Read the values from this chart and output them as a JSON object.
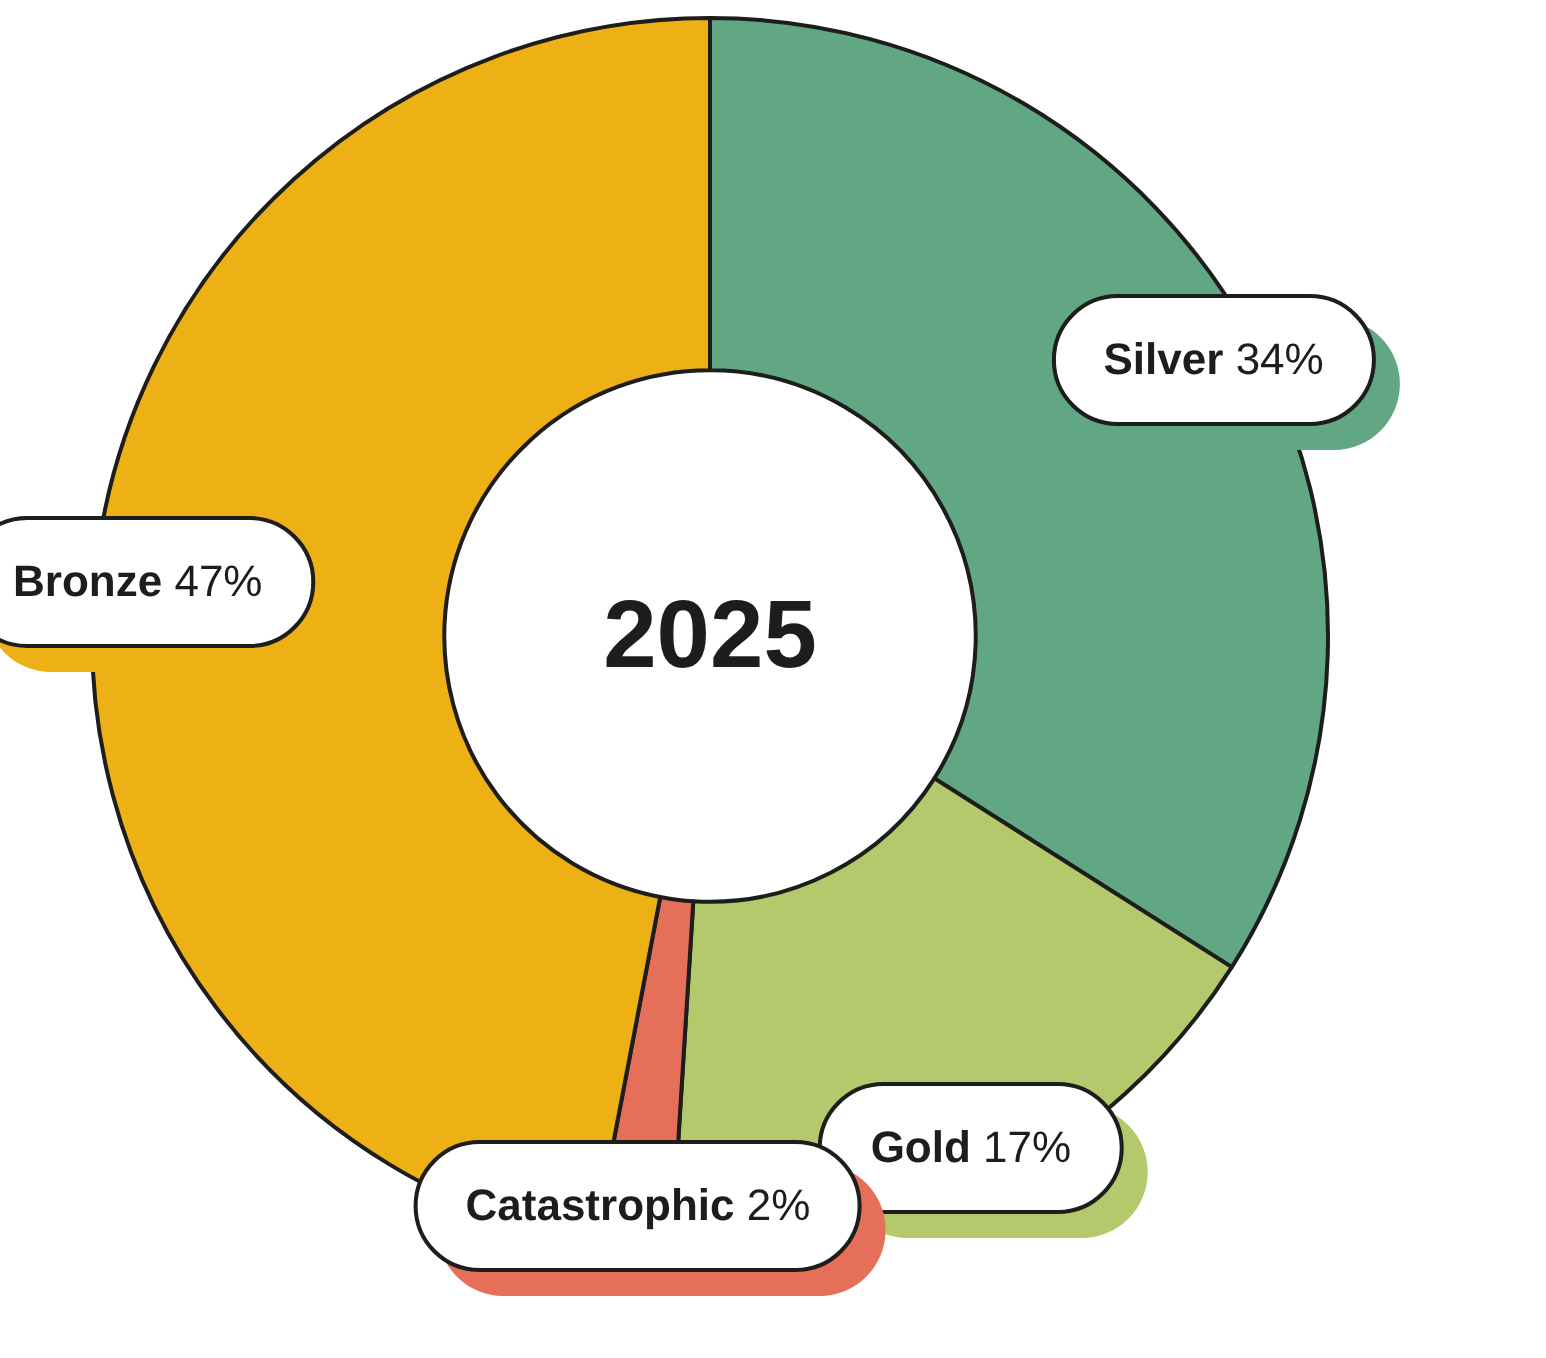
{
  "chart_data": {
    "type": "donut",
    "title": "2025",
    "categories": [
      "Silver",
      "Gold",
      "Catastrophic",
      "Bronze"
    ],
    "values": [
      34,
      17,
      2,
      47
    ],
    "value_labels": [
      "34%",
      "17%",
      "2%",
      "47%"
    ],
    "colors": [
      "#62a783",
      "#b3c96c",
      "#e56f58",
      "#edb116"
    ]
  }
}
